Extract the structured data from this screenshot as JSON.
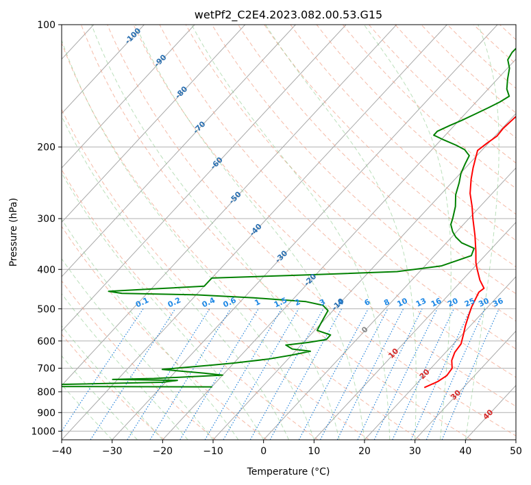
{
  "chart_data": {
    "type": "line",
    "subtype": "skew-t log-p diagram",
    "title": "wetPf2_C2E4.2023.082.00.53.G15",
    "xlabel": "Temperature (°C)",
    "ylabel": "Pressure (hPa)",
    "xlim": [
      -40,
      50
    ],
    "ylim": [
      1050,
      100
    ],
    "x_ticks": [
      "−40",
      "−30",
      "−20",
      "−10",
      "0",
      "10",
      "20",
      "30",
      "40",
      "50"
    ],
    "y_ticks": [
      "100",
      "200",
      "300",
      "400",
      "500",
      "600",
      "700",
      "800",
      "900",
      "1000"
    ],
    "y_tick_values": [
      100,
      200,
      300,
      400,
      500,
      600,
      700,
      800,
      900,
      1000
    ],
    "grid": true,
    "isotherm_labels": [
      "-100",
      "-90",
      "-80",
      "-70",
      "-60",
      "-50",
      "-40",
      "-30",
      "-20",
      "-10",
      "0",
      "10",
      "20",
      "30",
      "40"
    ],
    "mixing_ratio_labels": [
      "0.1",
      "0.2",
      "0.4",
      "0.6",
      "1",
      "1.5",
      "2",
      "3",
      "4",
      "6",
      "8",
      "10",
      "13",
      "16",
      "20",
      "25",
      "30",
      "36"
    ],
    "series": [
      {
        "name": "Temperature",
        "color": "#ff0000",
        "points": [
          [
            22.3,
            780
          ],
          [
            23.8,
            755
          ],
          [
            24.5,
            730
          ],
          [
            24.2,
            700
          ],
          [
            22.7,
            670
          ],
          [
            21.8,
            640
          ],
          [
            21.5,
            610
          ],
          [
            20.3,
            580
          ],
          [
            19.0,
            550
          ],
          [
            17.8,
            520
          ],
          [
            16.8,
            495
          ],
          [
            16.0,
            470
          ],
          [
            15.5,
            455
          ],
          [
            15.8,
            445
          ],
          [
            13.5,
            425
          ],
          [
            11.0,
            400
          ],
          [
            9.5,
            385
          ],
          [
            7.3,
            360
          ],
          [
            4.3,
            330
          ],
          [
            0.8,
            300
          ],
          [
            -1.6,
            280
          ],
          [
            -4.4,
            260
          ],
          [
            -6.8,
            240
          ],
          [
            -8.5,
            225
          ],
          [
            -9.9,
            212
          ],
          [
            -10.8,
            204
          ],
          [
            -10.3,
            196
          ],
          [
            -9.6,
            188
          ],
          [
            -9.8,
            180
          ],
          [
            -9.5,
            170
          ],
          [
            -9.2,
            163
          ],
          [
            -10.1,
            155
          ],
          [
            -10.5,
            145
          ],
          [
            -10.0,
            137
          ],
          [
            -10.5,
            130
          ],
          [
            -10.0,
            124
          ],
          [
            -10.8,
            117
          ],
          [
            -11.8,
            111
          ],
          [
            -14.0,
            105
          ],
          [
            -16.7,
            100
          ]
        ]
      },
      {
        "name": "Dewpoint",
        "color": "#008000",
        "points": [
          [
            -20.0,
            778
          ],
          [
            -56.0,
            776
          ],
          [
            -56.0,
            770
          ],
          [
            -30.5,
            758
          ],
          [
            -28.0,
            750
          ],
          [
            -41.0,
            746
          ],
          [
            -33.0,
            742
          ],
          [
            -20.0,
            728
          ],
          [
            -24.0,
            720
          ],
          [
            -33.0,
            705
          ],
          [
            -24.0,
            688
          ],
          [
            -20.0,
            680
          ],
          [
            -14.0,
            665
          ],
          [
            -10.0,
            650
          ],
          [
            -7.0,
            636
          ],
          [
            -11.0,
            628
          ],
          [
            -13.0,
            614
          ],
          [
            -9.0,
            605
          ],
          [
            -6.0,
            595
          ],
          [
            -6.0,
            580
          ],
          [
            -9.5,
            565
          ],
          [
            -10.0,
            545
          ],
          [
            -10.5,
            525
          ],
          [
            -11.0,
            505
          ],
          [
            -13.0,
            490
          ],
          [
            -17.0,
            480
          ],
          [
            -28.0,
            470
          ],
          [
            -40.0,
            462
          ],
          [
            -55.0,
            458
          ],
          [
            -58.0,
            453
          ],
          [
            -50.0,
            447
          ],
          [
            -40.0,
            440
          ],
          [
            -40.0,
            420
          ],
          [
            -22.5,
            413
          ],
          [
            -4.5,
            405
          ],
          [
            3.3,
            392
          ],
          [
            7.3,
            370
          ],
          [
            6.5,
            355
          ],
          [
            3.0,
            344
          ],
          [
            0.8,
            333
          ],
          [
            -0.8,
            323
          ],
          [
            -2.5,
            310
          ],
          [
            -3.2,
            300
          ],
          [
            -4.9,
            280
          ],
          [
            -7.0,
            262
          ],
          [
            -8.5,
            245
          ],
          [
            -9.9,
            232
          ],
          [
            -10.8,
            220
          ],
          [
            -11.5,
            210
          ],
          [
            -13.5,
            203
          ],
          [
            -16.0,
            198
          ],
          [
            -19.5,
            192
          ],
          [
            -22.3,
            187
          ],
          [
            -22.3,
            183
          ],
          [
            -20.9,
            177
          ],
          [
            -19.5,
            172
          ],
          [
            -18.0,
            166
          ],
          [
            -16.5,
            160
          ],
          [
            -15.3,
            155
          ],
          [
            -14.5,
            150
          ],
          [
            -16.3,
            144
          ],
          [
            -18.0,
            136
          ],
          [
            -19.6,
            128
          ],
          [
            -21.5,
            122
          ],
          [
            -22.0,
            117
          ],
          [
            -21.9,
            111
          ],
          [
            -22.0,
            106
          ],
          [
            -23.5,
            100
          ]
        ]
      }
    ]
  }
}
